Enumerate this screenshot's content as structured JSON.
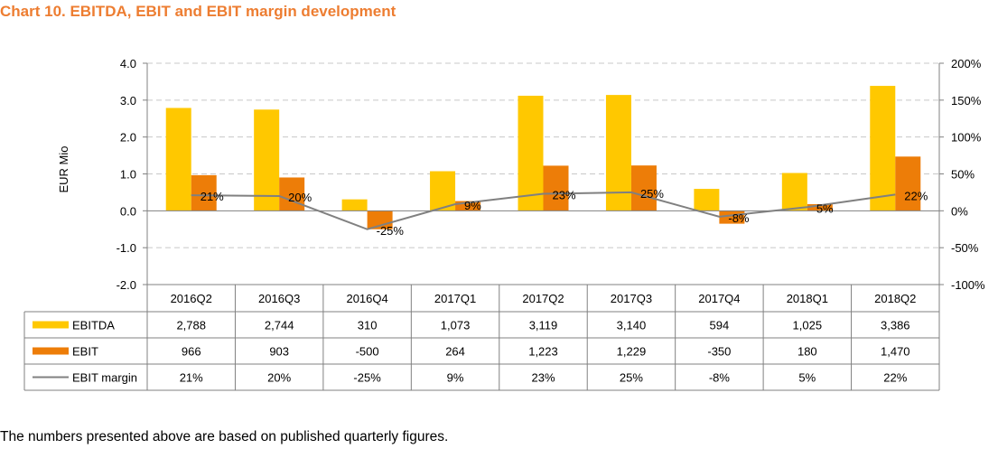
{
  "title": "Chart 10. EBITDA, EBIT and EBIT margin development",
  "footnote": "The numbers presented above are based on published quarterly figures.",
  "colors": {
    "title": "#ED7D31",
    "ebitda": "#FFC800",
    "ebit": "#ED7D08",
    "margin_line": "#808080",
    "grid": "#C8C8C8",
    "axis": "#808080"
  },
  "chart_data": {
    "type": "bar",
    "title": "Chart 10. EBITDA, EBIT and EBIT margin development",
    "categories": [
      "2016Q2",
      "2016Q3",
      "2016Q4",
      "2017Q1",
      "2017Q2",
      "2017Q3",
      "2017Q4",
      "2018Q1",
      "2018Q2"
    ],
    "series": [
      {
        "name": "EBITDA",
        "type": "bar",
        "axis": "left",
        "values": [
          2.788,
          2.744,
          0.31,
          1.073,
          3.119,
          3.14,
          0.594,
          1.025,
          3.386
        ],
        "table_values": [
          "2,788",
          "2,744",
          "310",
          "1,073",
          "3,119",
          "3,140",
          "594",
          "1,025",
          "3,386"
        ]
      },
      {
        "name": "EBIT",
        "type": "bar",
        "axis": "left",
        "values": [
          0.966,
          0.903,
          -0.5,
          0.264,
          1.223,
          1.229,
          -0.35,
          0.18,
          1.47
        ],
        "table_values": [
          "966",
          "903",
          "-500",
          "264",
          "1,223",
          "1,229",
          "-350",
          "180",
          "1,470"
        ]
      },
      {
        "name": "EBIT margin",
        "type": "line",
        "axis": "right",
        "values": [
          21,
          20,
          -25,
          9,
          23,
          25,
          -8,
          5,
          22
        ],
        "table_values": [
          "21%",
          "20%",
          "-25%",
          "9%",
          "23%",
          "25%",
          "-8%",
          "5%",
          "22%"
        ],
        "data_labels": [
          "21%",
          "20%",
          "-25%",
          "9%",
          "23%",
          "25%",
          "-8%",
          "5%",
          "22%"
        ]
      }
    ],
    "ylabel": "EUR Mio",
    "ylim": [
      -2.0,
      4.0
    ],
    "yticks": [
      "4.0",
      "3.0",
      "2.0",
      "1.0",
      "0.0",
      "-1.0",
      "-2.0"
    ],
    "ytick_values": [
      4,
      3,
      2,
      1,
      0,
      -1,
      -2
    ],
    "y2lim": [
      -100,
      200
    ],
    "y2ticks": [
      "200%",
      "150%",
      "100%",
      "50%",
      "0%",
      "-50%",
      "-100%"
    ],
    "y2tick_values": [
      200,
      150,
      100,
      50,
      0,
      -50,
      -100
    ],
    "grid": true,
    "legend": "data-table-left"
  }
}
